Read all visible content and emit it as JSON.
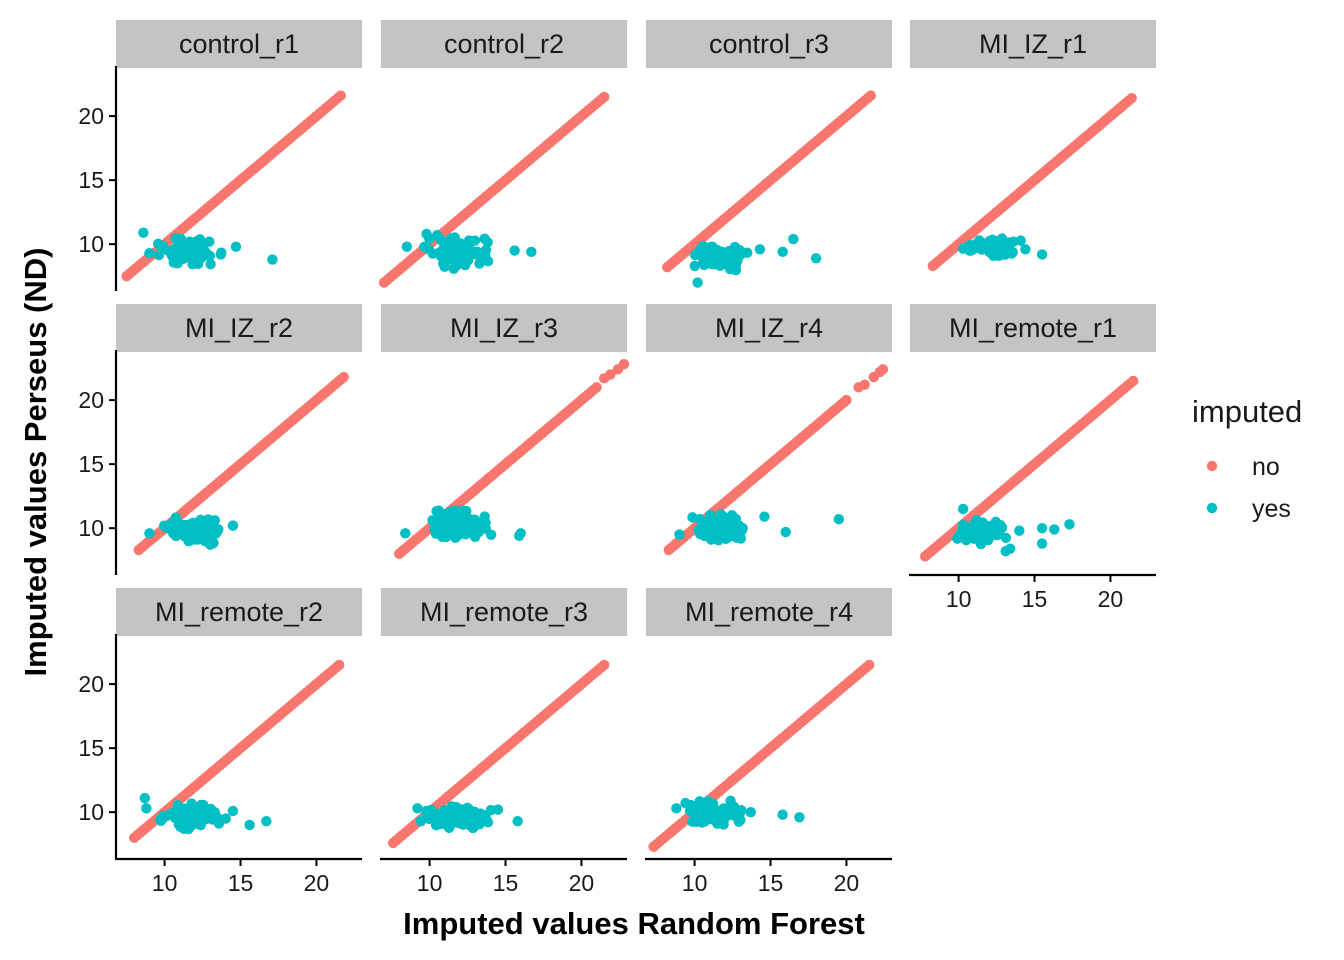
{
  "chart_data": {
    "type": "scatter",
    "title": "",
    "xlabel": "Imputed values Random Forest",
    "ylabel": "Imputed values Perseus (ND)",
    "xlim": [
      6.8,
      23.0
    ],
    "ylim": [
      6.5,
      23.6
    ],
    "x_ticks": [
      10,
      15,
      20
    ],
    "y_ticks": [
      10,
      15,
      20
    ],
    "grid": false,
    "legend": {
      "title": "imputed",
      "position": "right",
      "entries": [
        {
          "label": "no",
          "color": "#F8766D"
        },
        {
          "label": "yes",
          "color": "#00BFC4"
        }
      ]
    },
    "panels": [
      {
        "name": "control_r1",
        "line": [
          7.5,
          21.6
        ],
        "cluster": {
          "x": [
            9.0,
            14.0
          ],
          "y": [
            8.0,
            10.8
          ],
          "n": 80
        },
        "yes_extra": [
          [
            8.6,
            10.9
          ],
          [
            14.7,
            9.8
          ],
          [
            17.1,
            8.8
          ],
          [
            13.7,
            9.2
          ],
          [
            9.0,
            9.3
          ]
        ]
      },
      {
        "name": "control_r2",
        "line": [
          7.0,
          21.5
        ],
        "cluster": {
          "x": [
            9.0,
            14.5
          ],
          "y": [
            8.0,
            11.0
          ],
          "n": 85
        },
        "yes_extra": [
          [
            8.5,
            9.8
          ],
          [
            15.6,
            9.5
          ],
          [
            16.7,
            9.4
          ],
          [
            9.8,
            10.8
          ]
        ]
      },
      {
        "name": "control_r3",
        "line": [
          8.2,
          21.6
        ],
        "cluster": {
          "x": [
            9.0,
            14.0
          ],
          "y": [
            7.8,
            10.4
          ],
          "n": 75
        },
        "yes_extra": [
          [
            10.2,
            7.0
          ],
          [
            15.8,
            9.4
          ],
          [
            16.5,
            10.4
          ],
          [
            18.0,
            8.9
          ],
          [
            14.3,
            9.6
          ]
        ]
      },
      {
        "name": "MI_IZ_r1",
        "line": [
          8.3,
          21.4
        ],
        "cluster": {
          "x": [
            10.0,
            14.5
          ],
          "y": [
            8.8,
            10.8
          ],
          "n": 60
        },
        "yes_extra": [
          [
            15.5,
            9.2
          ],
          [
            14.4,
            9.6
          ]
        ]
      },
      {
        "name": "MI_IZ_r2",
        "line": [
          8.3,
          21.8
        ],
        "cluster": {
          "x": [
            9.5,
            14.5
          ],
          "y": [
            8.5,
            11.0
          ],
          "n": 95
        },
        "yes_extra": [
          [
            14.5,
            10.2
          ],
          [
            9.0,
            9.6
          ]
        ]
      },
      {
        "name": "MI_IZ_r3",
        "line": [
          8.0,
          21.0
        ],
        "cluster": {
          "x": [
            9.0,
            14.5
          ],
          "y": [
            8.5,
            11.8
          ],
          "n": 90
        },
        "no_extra": [
          [
            21.5,
            21.7
          ],
          [
            21.9,
            22.0
          ],
          [
            22.4,
            22.4
          ],
          [
            22.8,
            22.8
          ]
        ],
        "yes_extra": [
          [
            16.0,
            9.6
          ],
          [
            15.9,
            9.4
          ],
          [
            8.4,
            9.6
          ]
        ]
      },
      {
        "name": "MI_IZ_r4",
        "line": [
          8.3,
          20.0
        ],
        "cluster": {
          "x": [
            9.5,
            14.0
          ],
          "y": [
            8.5,
            11.5
          ],
          "n": 90
        },
        "no_extra": [
          [
            20.8,
            21.0
          ],
          [
            21.2,
            21.2
          ],
          [
            21.8,
            21.8
          ],
          [
            22.2,
            22.2
          ],
          [
            22.4,
            22.4
          ]
        ],
        "yes_extra": [
          [
            16.0,
            9.7
          ],
          [
            19.5,
            10.7
          ],
          [
            14.6,
            10.9
          ],
          [
            9.0,
            9.5
          ]
        ]
      },
      {
        "name": "MI_remote_r1",
        "line": [
          7.8,
          21.5
        ],
        "cluster": {
          "x": [
            9.5,
            13.5
          ],
          "y": [
            8.5,
            10.8
          ],
          "n": 75
        },
        "yes_extra": [
          [
            10.3,
            11.5
          ],
          [
            14.0,
            9.8
          ],
          [
            15.5,
            10.0
          ],
          [
            15.5,
            8.8
          ],
          [
            16.3,
            9.9
          ],
          [
            17.3,
            10.3
          ],
          [
            13.1,
            8.2
          ],
          [
            13.4,
            8.4
          ]
        ]
      },
      {
        "name": "MI_remote_r2",
        "line": [
          8.0,
          21.5
        ],
        "cluster": {
          "x": [
            9.0,
            14.5
          ],
          "y": [
            8.5,
            11.0
          ],
          "n": 85
        },
        "yes_extra": [
          [
            8.7,
            11.1
          ],
          [
            15.6,
            9.0
          ],
          [
            16.7,
            9.3
          ],
          [
            14.5,
            10.1
          ],
          [
            8.8,
            10.3
          ]
        ]
      },
      {
        "name": "MI_remote_r3",
        "line": [
          7.6,
          21.5
        ],
        "cluster": {
          "x": [
            9.0,
            14.5
          ],
          "y": [
            8.3,
            11.0
          ],
          "n": 95
        },
        "yes_extra": [
          [
            15.8,
            9.3
          ],
          [
            14.5,
            10.2
          ],
          [
            9.2,
            10.3
          ]
        ]
      },
      {
        "name": "MI_remote_r4",
        "line": [
          7.3,
          21.5
        ],
        "cluster": {
          "x": [
            9.0,
            14.0
          ],
          "y": [
            8.6,
            11.2
          ],
          "n": 85
        },
        "yes_extra": [
          [
            15.8,
            9.8
          ],
          [
            16.9,
            9.6
          ],
          [
            8.8,
            10.3
          ],
          [
            13.7,
            10.0
          ]
        ]
      }
    ]
  }
}
